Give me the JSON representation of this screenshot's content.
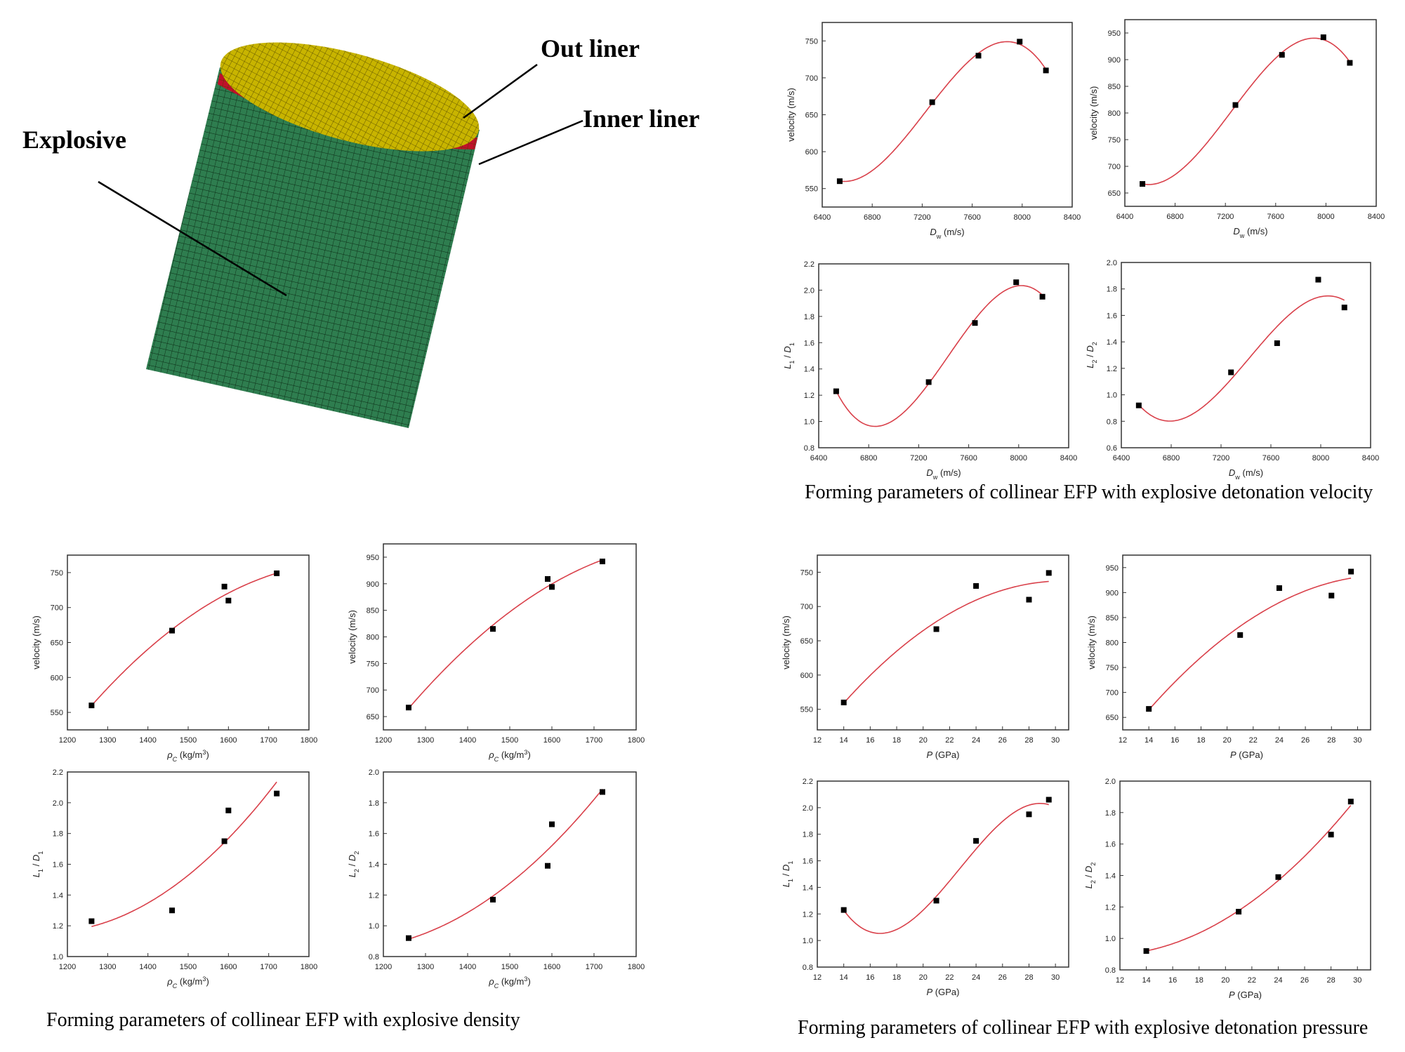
{
  "model": {
    "labels": {
      "out_liner": "Out liner",
      "inner_liner": "Inner liner",
      "explosive": "Explosive"
    },
    "colors": {
      "explosive": "#2e7d4f",
      "inner_liner": "#c0102a",
      "out_liner": "#c8b400",
      "mesh_lines": "#0b2a14"
    }
  },
  "captions": {
    "velocity": "Forming parameters of collinear EFP with explosive detonation velocity",
    "density": "Forming parameters of collinear EFP with explosive density",
    "pressure": "Forming parameters of collinear EFP with explosive detonation pressure"
  },
  "colors": {
    "fit_line": "#d9404a",
    "marker": "#000000",
    "axis": "#333333"
  },
  "chart_data": [
    {
      "id": "dw-v1",
      "type": "scatter",
      "fit": "polynomial",
      "fit_order": 3,
      "x": [
        6540,
        7280,
        7650,
        7980,
        8190
      ],
      "y": [
        560,
        667,
        730,
        749,
        710
      ],
      "xlim": [
        6400,
        8400
      ],
      "ylim": [
        525,
        775
      ],
      "xticks": [
        6400,
        6800,
        7200,
        7600,
        8000,
        8400
      ],
      "yticks": [
        550,
        600,
        650,
        700,
        750
      ],
      "xlabel": [
        {
          "t": "D",
          "i": true
        },
        {
          "t": "w",
          "sub": true
        },
        {
          "t": " (m/s)"
        }
      ],
      "ylabel": [
        {
          "t": "velocity (m/s)"
        }
      ],
      "grid": false
    },
    {
      "id": "dw-v2",
      "type": "scatter",
      "fit": "polynomial",
      "fit_order": 3,
      "x": [
        6540,
        7280,
        7650,
        7980,
        8190
      ],
      "y": [
        667,
        815,
        909,
        942,
        894
      ],
      "xlim": [
        6400,
        8400
      ],
      "ylim": [
        625,
        975
      ],
      "xticks": [
        6400,
        6800,
        7200,
        7600,
        8000,
        8400
      ],
      "yticks": [
        650,
        700,
        750,
        800,
        850,
        900,
        950
      ],
      "xlabel": [
        {
          "t": "D",
          "i": true
        },
        {
          "t": "w",
          "sub": true
        },
        {
          "t": " (m/s)"
        }
      ],
      "ylabel": [
        {
          "t": "velocity (m/s)"
        }
      ],
      "grid": false
    },
    {
      "id": "dw-l1d1",
      "type": "scatter",
      "fit": "polynomial",
      "fit_order": 3,
      "x": [
        6540,
        7280,
        7650,
        7980,
        8190
      ],
      "y": [
        1.23,
        1.3,
        1.75,
        2.06,
        1.95
      ],
      "xlim": [
        6400,
        8400
      ],
      "ylim": [
        0.8,
        2.2
      ],
      "xticks": [
        6400,
        6800,
        7200,
        7600,
        8000,
        8400
      ],
      "yticks": [
        0.8,
        1.0,
        1.2,
        1.4,
        1.6,
        1.8,
        2.0,
        2.2
      ],
      "xlabel": [
        {
          "t": "D",
          "i": true
        },
        {
          "t": "w",
          "sub": true
        },
        {
          "t": " (m/s)"
        }
      ],
      "ylabel": [
        {
          "t": "L",
          "i": true
        },
        {
          "t": "1",
          "sub": true
        },
        {
          "t": " / "
        },
        {
          "t": "D",
          "i": true
        },
        {
          "t": "1",
          "sub": true
        }
      ],
      "grid": false
    },
    {
      "id": "dw-l2d2",
      "type": "scatter",
      "fit": "polynomial",
      "fit_order": 3,
      "x": [
        6540,
        7280,
        7650,
        7980,
        8190
      ],
      "y": [
        0.92,
        1.17,
        1.39,
        1.87,
        1.66
      ],
      "xlim": [
        6400,
        8400
      ],
      "ylim": [
        0.6,
        2.0
      ],
      "xticks": [
        6400,
        6800,
        7200,
        7600,
        8000,
        8400
      ],
      "yticks": [
        0.6,
        0.8,
        1.0,
        1.2,
        1.4,
        1.6,
        1.8,
        2.0
      ],
      "xlabel": [
        {
          "t": "D",
          "i": true
        },
        {
          "t": "w",
          "sub": true
        },
        {
          "t": " (m/s)"
        }
      ],
      "ylabel": [
        {
          "t": "L",
          "i": true
        },
        {
          "t": "2",
          "sub": true
        },
        {
          "t": " / "
        },
        {
          "t": "D",
          "i": true
        },
        {
          "t": "2",
          "sub": true
        }
      ],
      "grid": false
    },
    {
      "id": "rho-v1",
      "type": "scatter",
      "fit": "polynomial",
      "fit_order": 2,
      "x": [
        1260,
        1460,
        1590,
        1600,
        1720
      ],
      "y": [
        560,
        667,
        730,
        710,
        749
      ],
      "xlim": [
        1200,
        1800
      ],
      "ylim": [
        525,
        775
      ],
      "xticks": [
        1200,
        1300,
        1400,
        1500,
        1600,
        1700,
        1800
      ],
      "yticks": [
        550,
        600,
        650,
        700,
        750
      ],
      "xlabel": [
        {
          "t": "ρ",
          "i": true
        },
        {
          "t": "C",
          "sub": true,
          "i": true
        },
        {
          "t": " (kg/m"
        },
        {
          "t": "3",
          "sup": true
        },
        {
          "t": ")"
        }
      ],
      "ylabel": [
        {
          "t": "velocity (m/s)"
        }
      ],
      "grid": false
    },
    {
      "id": "rho-v2",
      "type": "scatter",
      "fit": "polynomial",
      "fit_order": 2,
      "x": [
        1260,
        1460,
        1590,
        1600,
        1720
      ],
      "y": [
        667,
        815,
        909,
        894,
        942
      ],
      "xlim": [
        1200,
        1800
      ],
      "ylim": [
        625,
        975
      ],
      "xticks": [
        1200,
        1300,
        1400,
        1500,
        1600,
        1700,
        1800
      ],
      "yticks": [
        650,
        700,
        750,
        800,
        850,
        900,
        950
      ],
      "xlabel": [
        {
          "t": "ρ",
          "i": true
        },
        {
          "t": "C",
          "sub": true,
          "i": true
        },
        {
          "t": " (kg/m"
        },
        {
          "t": "3",
          "sup": true
        },
        {
          "t": ")"
        }
      ],
      "ylabel": [
        {
          "t": "velocity (m/s)"
        }
      ],
      "grid": false
    },
    {
      "id": "rho-l1d1",
      "type": "scatter",
      "fit": "polynomial",
      "fit_order": 2,
      "x": [
        1260,
        1460,
        1590,
        1600,
        1720
      ],
      "y": [
        1.23,
        1.3,
        1.75,
        1.95,
        2.06
      ],
      "xlim": [
        1200,
        1800
      ],
      "ylim": [
        1.0,
        2.2
      ],
      "xticks": [
        1200,
        1300,
        1400,
        1500,
        1600,
        1700,
        1800
      ],
      "yticks": [
        1.0,
        1.2,
        1.4,
        1.6,
        1.8,
        2.0,
        2.2
      ],
      "xlabel": [
        {
          "t": "ρ",
          "i": true
        },
        {
          "t": "C",
          "sub": true,
          "i": true
        },
        {
          "t": " (kg/m"
        },
        {
          "t": "3",
          "sup": true
        },
        {
          "t": ")"
        }
      ],
      "ylabel": [
        {
          "t": "L",
          "i": true
        },
        {
          "t": "1",
          "sub": true
        },
        {
          "t": " / "
        },
        {
          "t": "D",
          "i": true
        },
        {
          "t": "1",
          "sub": true
        }
      ],
      "grid": false
    },
    {
      "id": "rho-l2d2",
      "type": "scatter",
      "fit": "polynomial",
      "fit_order": 2,
      "x": [
        1260,
        1460,
        1590,
        1600,
        1720
      ],
      "y": [
        0.92,
        1.17,
        1.39,
        1.66,
        1.87
      ],
      "xlim": [
        1200,
        1800
      ],
      "ylim": [
        0.8,
        2.0
      ],
      "xticks": [
        1200,
        1300,
        1400,
        1500,
        1600,
        1700,
        1800
      ],
      "yticks": [
        0.8,
        1.0,
        1.2,
        1.4,
        1.6,
        1.8,
        2.0
      ],
      "xlabel": [
        {
          "t": "ρ",
          "i": true
        },
        {
          "t": "C",
          "sub": true,
          "i": true
        },
        {
          "t": " (kg/m"
        },
        {
          "t": "3",
          "sup": true
        },
        {
          "t": ")"
        }
      ],
      "ylabel": [
        {
          "t": "L",
          "i": true
        },
        {
          "t": "2",
          "sub": true
        },
        {
          "t": " / "
        },
        {
          "t": "D",
          "i": true
        },
        {
          "t": "2",
          "sub": true
        }
      ],
      "grid": false
    },
    {
      "id": "p-v1",
      "type": "scatter",
      "fit": "polynomial",
      "fit_order": 2,
      "x": [
        14,
        21,
        24,
        28,
        29.5
      ],
      "y": [
        560,
        667,
        730,
        710,
        749
      ],
      "xlim": [
        12,
        31
      ],
      "ylim": [
        520,
        775
      ],
      "xticks": [
        12,
        14,
        16,
        18,
        20,
        22,
        24,
        26,
        28,
        30
      ],
      "yticks": [
        550,
        600,
        650,
        700,
        750
      ],
      "xlabel": [
        {
          "t": "P",
          "i": true
        },
        {
          "t": " (GPa)"
        }
      ],
      "ylabel": [
        {
          "t": "velocity (m/s)"
        }
      ],
      "grid": false
    },
    {
      "id": "p-v2",
      "type": "scatter",
      "fit": "polynomial",
      "fit_order": 2,
      "x": [
        14,
        21,
        24,
        28,
        29.5
      ],
      "y": [
        667,
        815,
        909,
        894,
        942
      ],
      "xlim": [
        12,
        31
      ],
      "ylim": [
        625,
        975
      ],
      "xticks": [
        12,
        14,
        16,
        18,
        20,
        22,
        24,
        26,
        28,
        30
      ],
      "yticks": [
        650,
        700,
        750,
        800,
        850,
        900,
        950
      ],
      "xlabel": [
        {
          "t": "P",
          "i": true
        },
        {
          "t": " (GPa)"
        }
      ],
      "ylabel": [
        {
          "t": "velocity (m/s)"
        }
      ],
      "grid": false
    },
    {
      "id": "p-l1d1",
      "type": "scatter",
      "fit": "polynomial",
      "fit_order": 3,
      "x": [
        14,
        21,
        24,
        28,
        29.5
      ],
      "y": [
        1.23,
        1.3,
        1.75,
        1.95,
        2.06
      ],
      "xlim": [
        12,
        31
      ],
      "ylim": [
        0.8,
        2.2
      ],
      "xticks": [
        12,
        14,
        16,
        18,
        20,
        22,
        24,
        26,
        28,
        30
      ],
      "yticks": [
        0.8,
        1.0,
        1.2,
        1.4,
        1.6,
        1.8,
        2.0,
        2.2
      ],
      "xlabel": [
        {
          "t": "P",
          "i": true
        },
        {
          "t": " (GPa)"
        }
      ],
      "ylabel": [
        {
          "t": "L",
          "i": true
        },
        {
          "t": "1",
          "sub": true
        },
        {
          "t": " / "
        },
        {
          "t": "D",
          "i": true
        },
        {
          "t": "1",
          "sub": true
        }
      ],
      "grid": false
    },
    {
      "id": "p-l2d2",
      "type": "scatter",
      "fit": "polynomial",
      "fit_order": 2,
      "x": [
        14,
        21,
        24,
        28,
        29.5
      ],
      "y": [
        0.92,
        1.17,
        1.39,
        1.66,
        1.87
      ],
      "xlim": [
        12,
        31
      ],
      "ylim": [
        0.8,
        2.0
      ],
      "xticks": [
        12,
        14,
        16,
        18,
        20,
        22,
        24,
        26,
        28,
        30
      ],
      "yticks": [
        0.8,
        1.0,
        1.2,
        1.4,
        1.6,
        1.8,
        2.0
      ],
      "xlabel": [
        {
          "t": "P",
          "i": true
        },
        {
          "t": " (GPa)"
        }
      ],
      "ylabel": [
        {
          "t": "L",
          "i": true
        },
        {
          "t": "2",
          "sub": true
        },
        {
          "t": " / "
        },
        {
          "t": "D",
          "i": true
        },
        {
          "t": "2",
          "sub": true
        }
      ],
      "grid": false
    }
  ]
}
